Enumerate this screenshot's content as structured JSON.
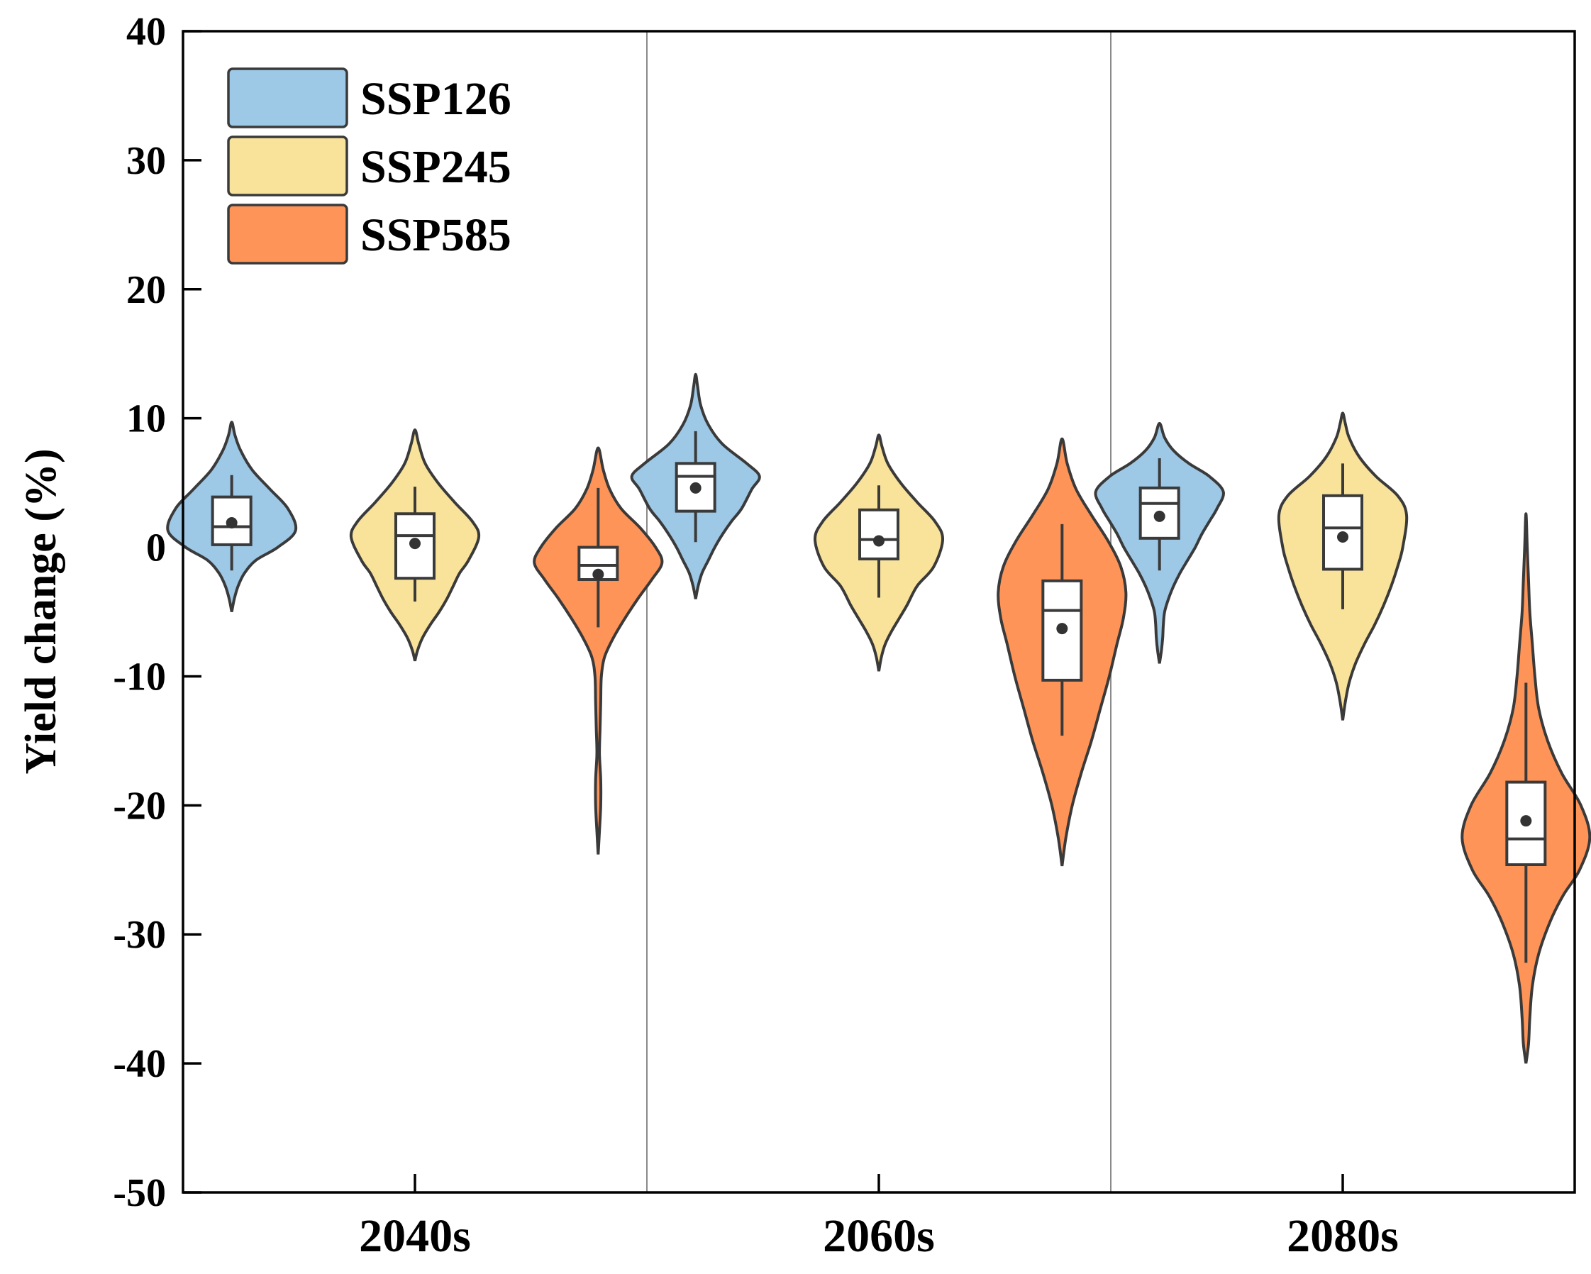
{
  "chart_data": {
    "type": "violin",
    "title": "",
    "xlabel": "",
    "ylabel": "Yield change (%)",
    "ylim": [
      -50,
      40
    ],
    "yticks": [
      40,
      30,
      20,
      10,
      0,
      -10,
      -20,
      -30,
      -40,
      -50
    ],
    "categories": [
      "2040s",
      "2060s",
      "2080s"
    ],
    "legend_position": "top-left",
    "colors": {
      "SSP126": "#9DC8E6",
      "SSP245": "#F9E39B",
      "SSP585": "#FF9459"
    },
    "series": [
      {
        "name": "SSP126",
        "violins": [
          {
            "period": "2040s",
            "min": -5,
            "max": 9.7,
            "peak": 1.3,
            "peak_width": 0.55,
            "shape": [
              [
                -5,
                0
              ],
              [
                -4,
                0.04
              ],
              [
                -3,
                0.1
              ],
              [
                -2,
                0.2
              ],
              [
                -1,
                0.38
              ],
              [
                0,
                0.72
              ],
              [
                1.3,
                1
              ],
              [
                3,
                0.88
              ],
              [
                4.5,
                0.6
              ],
              [
                6,
                0.32
              ],
              [
                7.5,
                0.14
              ],
              [
                8.7,
                0.05
              ],
              [
                9.7,
                0
              ]
            ],
            "whisker_low": -1.8,
            "q1": 0.2,
            "median": 1.6,
            "q3": 3.9,
            "whisker_high": 5.6,
            "mean": 1.9
          },
          {
            "period": "2060s",
            "min": -4,
            "max": 13.4,
            "peak": 5.5,
            "peak_width": 0.55,
            "shape": [
              [
                -4,
                0
              ],
              [
                -3,
                0.04
              ],
              [
                -2,
                0.1
              ],
              [
                -1,
                0.2
              ],
              [
                0,
                0.3
              ],
              [
                1,
                0.42
              ],
              [
                2,
                0.56
              ],
              [
                3,
                0.72
              ],
              [
                4.5,
                0.88
              ],
              [
                5.5,
                1
              ],
              [
                6.5,
                0.8
              ],
              [
                8,
                0.42
              ],
              [
                9.5,
                0.2
              ],
              [
                11,
                0.08
              ],
              [
                12.5,
                0.03
              ],
              [
                13.4,
                0
              ]
            ],
            "whisker_low": 0.4,
            "q1": 2.8,
            "median": 5.5,
            "q3": 6.5,
            "whisker_high": 9.0,
            "mean": 4.6
          },
          {
            "period": "2080s",
            "min": -9,
            "max": 9.6,
            "peak": 4.3,
            "peak_width": 0.55,
            "shape": [
              [
                -9,
                0
              ],
              [
                -8,
                0.03
              ],
              [
                -7,
                0.05
              ],
              [
                -6,
                0.06
              ],
              [
                -5,
                0.08
              ],
              [
                -4,
                0.14
              ],
              [
                -3,
                0.22
              ],
              [
                -2,
                0.32
              ],
              [
                -1,
                0.44
              ],
              [
                0,
                0.56
              ],
              [
                1,
                0.66
              ],
              [
                2,
                0.78
              ],
              [
                3,
                0.9
              ],
              [
                4.3,
                1
              ],
              [
                5.5,
                0.78
              ],
              [
                6.5,
                0.46
              ],
              [
                7.5,
                0.22
              ],
              [
                8.5,
                0.08
              ],
              [
                9.6,
                0
              ]
            ],
            "whisker_low": -1.8,
            "q1": 0.7,
            "median": 3.4,
            "q3": 4.6,
            "whisker_high": 6.9,
            "mean": 2.4
          }
        ]
      },
      {
        "name": "SSP245",
        "violins": [
          {
            "period": "2040s",
            "min": -8.8,
            "max": 9.1,
            "peak": 0.8,
            "peak_width": 0.55,
            "shape": [
              [
                -8.8,
                0
              ],
              [
                -8,
                0.04
              ],
              [
                -7,
                0.12
              ],
              [
                -6,
                0.24
              ],
              [
                -5,
                0.38
              ],
              [
                -4,
                0.5
              ],
              [
                -3,
                0.6
              ],
              [
                -2,
                0.7
              ],
              [
                -1,
                0.84
              ],
              [
                0.8,
                1
              ],
              [
                2,
                0.9
              ],
              [
                3.5,
                0.62
              ],
              [
                5,
                0.36
              ],
              [
                6.5,
                0.16
              ],
              [
                8,
                0.06
              ],
              [
                9.1,
                0
              ]
            ],
            "whisker_low": -4.2,
            "q1": -2.4,
            "median": 0.9,
            "q3": 2.6,
            "whisker_high": 4.7,
            "mean": 0.3
          },
          {
            "period": "2060s",
            "min": -9.6,
            "max": 8.7,
            "peak": 0.6,
            "peak_width": 0.55,
            "shape": [
              [
                -9.6,
                0
              ],
              [
                -8.5,
                0.04
              ],
              [
                -7.5,
                0.1
              ],
              [
                -6.5,
                0.2
              ],
              [
                -5.5,
                0.32
              ],
              [
                -4.5,
                0.44
              ],
              [
                -3,
                0.6
              ],
              [
                -1.5,
                0.86
              ],
              [
                0.6,
                1
              ],
              [
                2,
                0.88
              ],
              [
                3.5,
                0.6
              ],
              [
                5,
                0.34
              ],
              [
                6.5,
                0.14
              ],
              [
                7.8,
                0.05
              ],
              [
                8.7,
                0
              ]
            ],
            "whisker_low": -3.9,
            "q1": -0.9,
            "median": 0.6,
            "q3": 2.9,
            "whisker_high": 4.8,
            "mean": 0.5
          },
          {
            "period": "2080s",
            "min": -13.4,
            "max": 10.4,
            "peak": 2.5,
            "peak_width": 0.55,
            "shape": [
              [
                -13.4,
                0
              ],
              [
                -12,
                0.04
              ],
              [
                -10.5,
                0.1
              ],
              [
                -9,
                0.2
              ],
              [
                -7.5,
                0.34
              ],
              [
                -6,
                0.5
              ],
              [
                -4.5,
                0.64
              ],
              [
                -3,
                0.76
              ],
              [
                -1.5,
                0.86
              ],
              [
                0,
                0.94
              ],
              [
                2.5,
                1
              ],
              [
                4,
                0.86
              ],
              [
                5.5,
                0.52
              ],
              [
                7,
                0.26
              ],
              [
                8.5,
                0.1
              ],
              [
                9.6,
                0.04
              ],
              [
                10.4,
                0
              ]
            ],
            "whisker_low": -4.8,
            "q1": -1.7,
            "median": 1.5,
            "q3": 4.0,
            "whisker_high": 6.5,
            "mean": 0.8
          }
        ]
      },
      {
        "name": "SSP585",
        "violins": [
          {
            "period": "2040s",
            "min": -23.8,
            "max": 7.7,
            "peak": -1.2,
            "peak_width": 0.55,
            "shape": [
              [
                -23.8,
                0
              ],
              [
                -22,
                0.02
              ],
              [
                -20,
                0.04
              ],
              [
                -18,
                0.04
              ],
              [
                -16,
                0.02
              ],
              [
                -14,
                0.03
              ],
              [
                -12,
                0.04
              ],
              [
                -10,
                0.05
              ],
              [
                -8.5,
                0.1
              ],
              [
                -7,
                0.24
              ],
              [
                -5.5,
                0.42
              ],
              [
                -4,
                0.62
              ],
              [
                -2.5,
                0.84
              ],
              [
                -1.2,
                1
              ],
              [
                0,
                0.9
              ],
              [
                1.5,
                0.66
              ],
              [
                3,
                0.36
              ],
              [
                4.5,
                0.18
              ],
              [
                6,
                0.08
              ],
              [
                7.7,
                0
              ]
            ],
            "whisker_low": -6.2,
            "q1": -2.5,
            "median": -1.4,
            "q3": 0.0,
            "whisker_high": 4.6,
            "mean": -2.1
          },
          {
            "period": "2060s",
            "min": -24.7,
            "max": 8.4,
            "peak": -3.5,
            "peak_width": 0.55,
            "shape": [
              [
                -24.7,
                0
              ],
              [
                -22.5,
                0.06
              ],
              [
                -20,
                0.16
              ],
              [
                -17.5,
                0.3
              ],
              [
                -15,
                0.46
              ],
              [
                -12.5,
                0.6
              ],
              [
                -10,
                0.74
              ],
              [
                -7.5,
                0.86
              ],
              [
                -5.5,
                0.96
              ],
              [
                -3.5,
                1
              ],
              [
                -1.5,
                0.92
              ],
              [
                0.5,
                0.72
              ],
              [
                2.5,
                0.46
              ],
              [
                4.5,
                0.22
              ],
              [
                6.5,
                0.08
              ],
              [
                8.4,
                0
              ]
            ],
            "whisker_low": -14.6,
            "q1": -10.3,
            "median": -4.9,
            "q3": -2.6,
            "whisker_high": 1.8,
            "mean": -6.3
          },
          {
            "period": "2080s",
            "min": -40,
            "max": 2.6,
            "peak": -22.5,
            "peak_width": 0.55,
            "shape": [
              [
                -40,
                0
              ],
              [
                -38.5,
                0.04
              ],
              [
                -36.5,
                0.06
              ],
              [
                -34,
                0.1
              ],
              [
                -31.5,
                0.2
              ],
              [
                -29,
                0.38
              ],
              [
                -27,
                0.58
              ],
              [
                -25,
                0.84
              ],
              [
                -22.5,
                1
              ],
              [
                -20,
                0.86
              ],
              [
                -17.5,
                0.56
              ],
              [
                -15,
                0.34
              ],
              [
                -12.5,
                0.2
              ],
              [
                -10,
                0.14
              ],
              [
                -7.5,
                0.1
              ],
              [
                -5,
                0.06
              ],
              [
                -2.5,
                0.04
              ],
              [
                0,
                0.02
              ],
              [
                2.6,
                0
              ]
            ],
            "whisker_low": -32.2,
            "q1": -24.6,
            "median": -22.6,
            "q3": -18.2,
            "whisker_high": -10.5,
            "mean": -21.2
          }
        ]
      }
    ]
  }
}
